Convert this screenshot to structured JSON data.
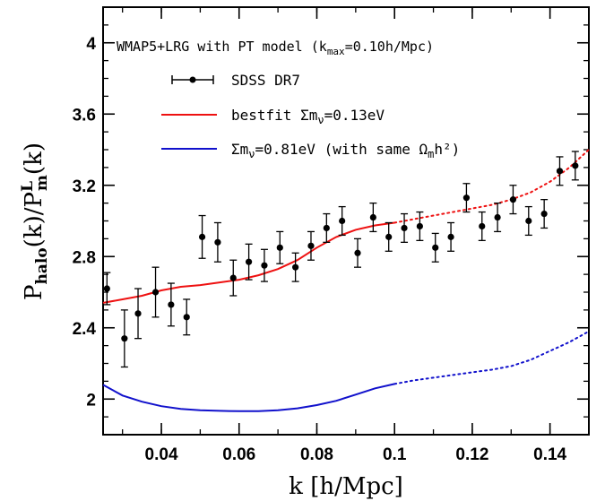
{
  "chart_data": {
    "type": "scatter",
    "title": "WMAP5+LRG with PT model (k_max=0.10h/Mpc)",
    "title_parts": {
      "main": "WMAP5+LRG with PT model (k",
      "sub": "max",
      "rest": "=0.10h/Mpc)"
    },
    "xlabel": "k [h/Mpc]",
    "ylabel_parts": {
      "p1": "P",
      "s1": "halo",
      "p2": "(k)/P",
      "sup2": "L",
      "sub2": "m",
      "p3": "(k)"
    },
    "xlim": [
      0.025,
      0.15
    ],
    "ylim": [
      1.8,
      4.2
    ],
    "x_ticks": [
      0.04,
      0.06,
      0.08,
      0.1,
      0.12,
      0.14
    ],
    "x_tick_labels": [
      "0.04",
      "0.06",
      "0.08",
      "0.1",
      "0.12",
      "0.14"
    ],
    "y_ticks": [
      2,
      2.4,
      2.8,
      3.2,
      3.6,
      4
    ],
    "y_tick_labels": [
      "2",
      "2.4",
      "2.8",
      "3.2",
      "3.6",
      "4"
    ],
    "legend": [
      {
        "key": "sdss",
        "label": "SDSS DR7"
      },
      {
        "key": "best",
        "label_parts": {
          "a": "bestfit Σm",
          "sub": "ν",
          "b": "=0.13eV"
        }
      },
      {
        "key": "heavy",
        "label_parts": {
          "a": "Σm",
          "sub": "ν",
          "b": "=0.81eV (with same Ω",
          "sub2": "m",
          "c": "h²)"
        }
      }
    ],
    "colors": {
      "bestfit": "#ee1111",
      "heavy": "#1111cc",
      "points": "#000000"
    },
    "series": [
      {
        "name": "SDSS DR7",
        "type": "errorbar",
        "x": [
          0.026,
          0.0305,
          0.034,
          0.0385,
          0.0425,
          0.0465,
          0.0505,
          0.0545,
          0.0585,
          0.0625,
          0.0665,
          0.0705,
          0.0745,
          0.0785,
          0.0825,
          0.0865,
          0.0905,
          0.0945,
          0.0985,
          0.1025,
          0.1065,
          0.1105,
          0.1145,
          0.1185,
          0.1225,
          0.1265,
          0.1305,
          0.1345,
          0.1385,
          0.1425,
          0.1465
        ],
        "y": [
          2.62,
          2.34,
          2.48,
          2.6,
          2.53,
          2.46,
          2.91,
          2.88,
          2.68,
          2.77,
          2.75,
          2.85,
          2.74,
          2.86,
          2.96,
          3.0,
          2.82,
          3.02,
          2.91,
          2.96,
          2.97,
          2.85,
          2.91,
          3.13,
          2.97,
          3.02,
          3.12,
          3.0,
          3.04,
          3.28,
          3.31
        ],
        "yerr": [
          0.09,
          0.16,
          0.14,
          0.14,
          0.12,
          0.1,
          0.12,
          0.11,
          0.1,
          0.1,
          0.09,
          0.09,
          0.08,
          0.08,
          0.08,
          0.08,
          0.08,
          0.08,
          0.08,
          0.08,
          0.08,
          0.08,
          0.08,
          0.08,
          0.08,
          0.08,
          0.08,
          0.08,
          0.08,
          0.08,
          0.08
        ]
      },
      {
        "name": "bestfit Σm_ν=0.13eV",
        "type": "line",
        "x": [
          0.025,
          0.03,
          0.035,
          0.04,
          0.045,
          0.05,
          0.055,
          0.06,
          0.065,
          0.07,
          0.075,
          0.08,
          0.085,
          0.09,
          0.095,
          0.1
        ],
        "y": [
          2.54,
          2.56,
          2.58,
          2.61,
          2.63,
          2.64,
          2.655,
          2.67,
          2.695,
          2.73,
          2.78,
          2.85,
          2.91,
          2.95,
          2.975,
          2.99
        ]
      },
      {
        "name": "bestfit Σm_ν=0.13eV (k > k_max)",
        "type": "dotted",
        "x": [
          0.1,
          0.105,
          0.11,
          0.115,
          0.12,
          0.125,
          0.13,
          0.135,
          0.14,
          0.145,
          0.15
        ],
        "y": [
          2.99,
          3.01,
          3.03,
          3.05,
          3.07,
          3.09,
          3.12,
          3.16,
          3.22,
          3.3,
          3.4
        ]
      },
      {
        "name": "Σm_ν=0.81eV (with same Ω_mh²)",
        "type": "line",
        "x": [
          0.025,
          0.03,
          0.035,
          0.04,
          0.045,
          0.05,
          0.055,
          0.06,
          0.065,
          0.07,
          0.075,
          0.08,
          0.085,
          0.09,
          0.095,
          0.1
        ],
        "y": [
          2.08,
          2.02,
          1.985,
          1.96,
          1.945,
          1.937,
          1.934,
          1.932,
          1.932,
          1.937,
          1.948,
          1.966,
          1.99,
          2.025,
          2.06,
          2.085
        ]
      },
      {
        "name": "Σm_ν=0.81eV (k > k_max)",
        "type": "dotted",
        "x": [
          0.1,
          0.105,
          0.11,
          0.115,
          0.12,
          0.125,
          0.13,
          0.135,
          0.14,
          0.145,
          0.15
        ],
        "y": [
          2.085,
          2.105,
          2.12,
          2.135,
          2.15,
          2.165,
          2.185,
          2.22,
          2.27,
          2.32,
          2.38
        ]
      }
    ]
  }
}
